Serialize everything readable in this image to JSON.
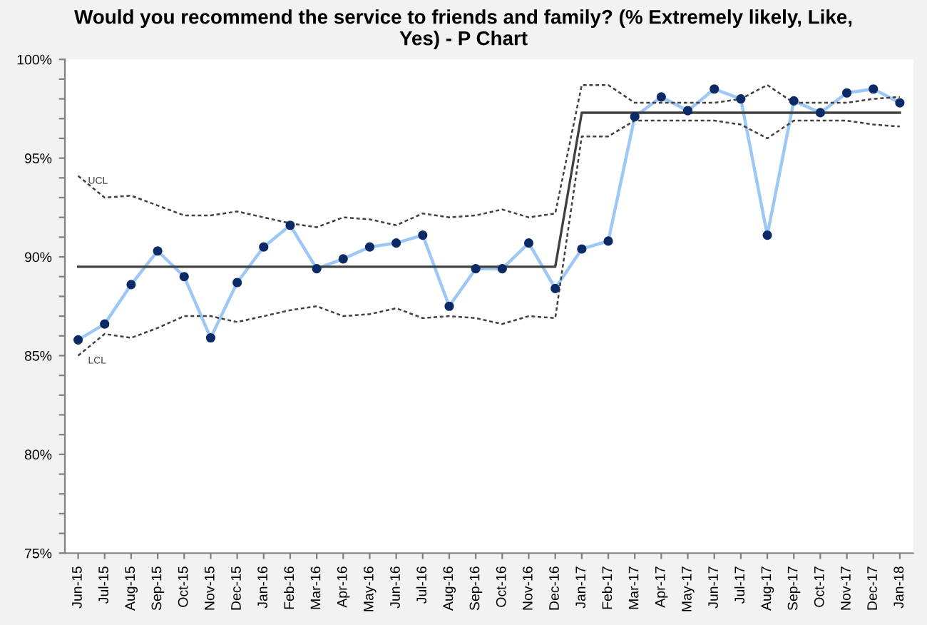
{
  "chart_data": {
    "type": "line",
    "title": "Would you recommend the service to friends and family? (% Extremely likely, Like,\nYes) - P Chart",
    "categories": [
      "Jun-15",
      "Jul-15",
      "Aug-15",
      "Sep-15",
      "Oct-15",
      "Nov-15",
      "Dec-15",
      "Jan-16",
      "Feb-16",
      "Mar-16",
      "Apr-16",
      "May-16",
      "Jun-16",
      "Jul-16",
      "Aug-16",
      "Sep-16",
      "Oct-16",
      "Nov-16",
      "Dec-16",
      "Jan-17",
      "Feb-17",
      "Mar-17",
      "Apr-17",
      "May-17",
      "Jun-17",
      "Jul-17",
      "Aug-17",
      "Sep-17",
      "Oct-17",
      "Nov-17",
      "Dec-17",
      "Jan-18"
    ],
    "series": [
      {
        "color": "#9dc8f5",
        "colors": [
          "#0b2a66",
          "#0b2a66",
          "#0b2a66",
          "#0b2a66",
          "#0b2a66",
          "#0b2a66",
          "#0b2a66",
          "#0b2a66",
          "#0b2a66",
          "#0b2a66",
          "#0b2a66",
          "#0b2a66",
          "#0b2a66",
          "#0b2a66",
          "#0b2a66",
          "#0b2a66",
          "#0b2a66",
          "#0b2a66",
          "#0b2a66",
          "#0b2a66",
          "#0b2a66",
          "#0b2a66",
          "#0b2a66",
          "#0b2a66",
          "#0b2a66",
          "#0b2a66",
          "#0b2a66",
          "#0b2a66",
          "#0b2a66",
          "#0b2a66",
          "#0b2a66",
          "#0b2a66"
        ],
        "marker": "circle",
        "line_style": "solid",
        "values": [
          85.8,
          86.6,
          88.6,
          90.3,
          89.0,
          85.9,
          88.7,
          90.5,
          91.6,
          89.4,
          89.9,
          90.5,
          90.7,
          91.1,
          87.5,
          89.4,
          89.4,
          90.7,
          88.4,
          90.4,
          90.8,
          97.1,
          98.1,
          97.4,
          98.5,
          98.0,
          91.1,
          97.9,
          97.3,
          98.3,
          98.5,
          97.8
        ]
      },
      {
        "color": "#404040",
        "marker": "none",
        "line_style": "solid",
        "values": [
          89.5,
          89.5,
          89.5,
          89.5,
          89.5,
          89.5,
          89.5,
          89.5,
          89.5,
          89.5,
          89.5,
          89.5,
          89.5,
          89.5,
          89.5,
          89.5,
          89.5,
          89.5,
          89.5,
          97.3,
          97.3,
          97.3,
          97.3,
          97.3,
          97.3,
          97.3,
          97.3,
          97.3,
          97.3,
          97.3,
          97.3,
          97.3
        ]
      },
      {
        "color": "#404040",
        "marker": "none",
        "line_style": "dashed",
        "values": [
          94.1,
          93.0,
          93.1,
          92.6,
          92.1,
          92.1,
          92.3,
          92.0,
          91.7,
          91.5,
          92.0,
          91.9,
          91.6,
          92.2,
          92.0,
          92.1,
          92.4,
          92.0,
          92.2,
          98.7,
          98.7,
          97.8,
          97.8,
          97.8,
          97.8,
          98.0,
          98.7,
          97.8,
          97.8,
          97.8,
          98.0,
          98.1
        ]
      },
      {
        "color": "#404040",
        "marker": "none",
        "line_style": "dashed",
        "values": [
          85.0,
          86.1,
          85.9,
          86.4,
          87.0,
          87.0,
          86.7,
          87.0,
          87.3,
          87.5,
          87.0,
          87.1,
          87.4,
          86.9,
          87.0,
          86.9,
          86.6,
          87.0,
          86.9,
          96.1,
          96.1,
          96.9,
          96.9,
          96.9,
          96.9,
          96.7,
          96.0,
          96.9,
          96.9,
          96.9,
          96.7,
          96.6
        ]
      }
    ],
    "annotations": [
      {
        "text": "UCL",
        "x": "Jun-15",
        "y": 94.1
      },
      {
        "text": "LCL",
        "x": "Jun-15",
        "y": 85.0
      }
    ],
    "ylim": [
      75,
      100
    ],
    "yticks": [
      {
        "value": 75,
        "label": "75%"
      },
      {
        "value": 76,
        "label": null
      },
      {
        "value": 77,
        "label": null
      },
      {
        "value": 78,
        "label": null
      },
      {
        "value": 79,
        "label": null
      },
      {
        "value": 80,
        "label": "80%"
      },
      {
        "value": 81,
        "label": null
      },
      {
        "value": 82,
        "label": null
      },
      {
        "value": 83,
        "label": null
      },
      {
        "value": 84,
        "label": null
      },
      {
        "value": 85,
        "label": "85%"
      },
      {
        "value": 86,
        "label": null
      },
      {
        "value": 87,
        "label": null
      },
      {
        "value": 88,
        "label": null
      },
      {
        "value": 89,
        "label": null
      },
      {
        "value": 90,
        "label": "90%"
      },
      {
        "value": 91,
        "label": null
      },
      {
        "value": 92,
        "label": null
      },
      {
        "value": 93,
        "label": null
      },
      {
        "value": 94,
        "label": null
      },
      {
        "value": 95,
        "label": "95%"
      },
      {
        "value": 96,
        "label": null
      },
      {
        "value": 97,
        "label": null
      },
      {
        "value": 98,
        "label": null
      },
      {
        "value": 99,
        "label": null
      },
      {
        "value": 100,
        "label": "100%"
      }
    ],
    "grid": false
  }
}
